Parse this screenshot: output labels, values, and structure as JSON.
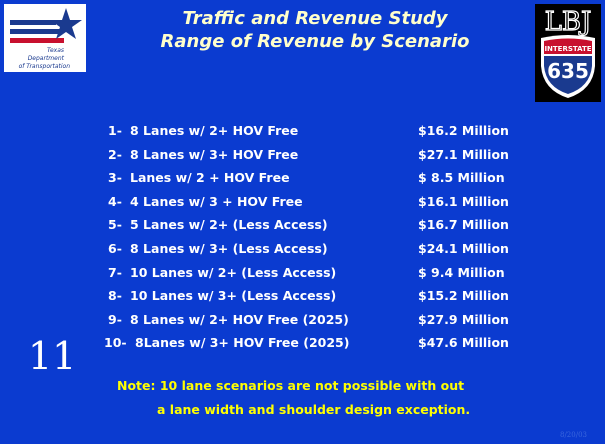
{
  "header": {
    "title": [
      "Traffic and Revenue Study",
      "Range of Revenue by Scenario"
    ]
  },
  "logos": {
    "txdot": [
      "Texas",
      "Department",
      "of Transportation"
    ],
    "lbj": {
      "name": "LBJ",
      "badge": "INTERSTATE",
      "number": "635"
    }
  },
  "scenarios": [
    {
      "number": "1-",
      "label": "8 Lanes w/ 2+ HOV Free",
      "revenue": "$16.2 Million"
    },
    {
      "number": "2-",
      "label": "8 Lanes w/ 3+ HOV Free",
      "revenue": "$27.1 Million"
    },
    {
      "number": "3-",
      "label": "Lanes w/ 2 + HOV Free",
      "revenue": "$ 8.5 Million"
    },
    {
      "number": "4-",
      "label": "4 Lanes w/ 3 + HOV Free",
      "revenue": "$16.1 Million"
    },
    {
      "number": "5-",
      "label": "5 Lanes w/ 2+ (Less Access)",
      "revenue": "$16.7 Million"
    },
    {
      "number": "6-",
      "label": "8 Lanes w/ 3+ (Less Access)",
      "revenue": "$24.1 Million"
    },
    {
      "number": "7-",
      "label": "10 Lanes w/ 2+ (Less Access)",
      "revenue": "$ 9.4 Million"
    },
    {
      "number": "8-",
      "label": "10 Lanes w/ 3+ (Less Access)",
      "revenue": "$15.2 Million"
    },
    {
      "number": "9-",
      "label": "8 Lanes w/ 2+ HOV Free (2025)",
      "revenue": "$27.9 Million"
    },
    {
      "number": "10-",
      "label": "8Lanes w/ 3+ HOV Free (2025)",
      "revenue": "$47.6 Million"
    }
  ],
  "slide_number": "11",
  "note": [
    "Note: 10 lane scenarios are not possible with out",
    "a lane width and shoulder design exception."
  ],
  "date": "8/20/03"
}
